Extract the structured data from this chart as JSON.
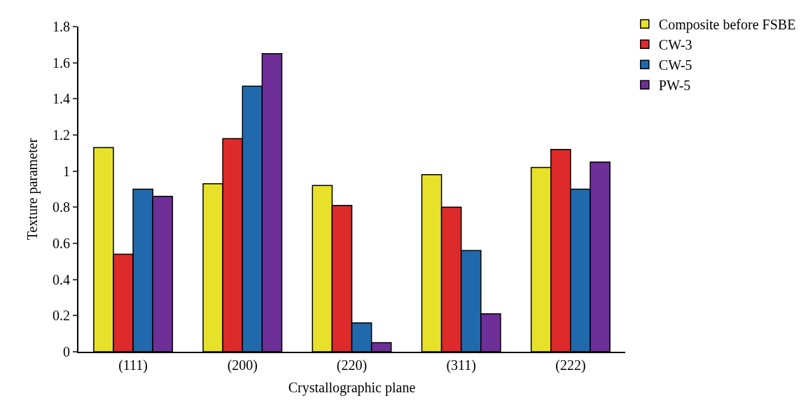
{
  "chart_data": {
    "type": "bar",
    "xlabel": "Crystallographic plane",
    "ylabel": "Texture parameter",
    "categories": [
      "(111)",
      "(200)",
      "(220)",
      "(311)",
      "(222)"
    ],
    "series": [
      {
        "name": "Composite before FSBE",
        "color": "#e8e12a",
        "values": [
          1.13,
          0.93,
          0.92,
          0.98,
          1.02
        ]
      },
      {
        "name": "CW-3",
        "color": "#dd2a2a",
        "values": [
          0.54,
          1.18,
          0.81,
          0.8,
          1.12
        ]
      },
      {
        "name": "CW-5",
        "color": "#2069ad",
        "values": [
          0.9,
          1.47,
          0.16,
          0.56,
          0.9
        ]
      },
      {
        "name": "PW-5",
        "color": "#6e2f98",
        "values": [
          0.86,
          1.65,
          0.05,
          0.21,
          1.05
        ]
      }
    ],
    "ylim": [
      0,
      1.8
    ],
    "yticks": [
      0,
      0.2,
      0.4,
      0.6,
      0.8,
      1,
      1.2,
      1.4,
      1.6,
      1.8
    ],
    "grid": false,
    "legend": "top right"
  }
}
